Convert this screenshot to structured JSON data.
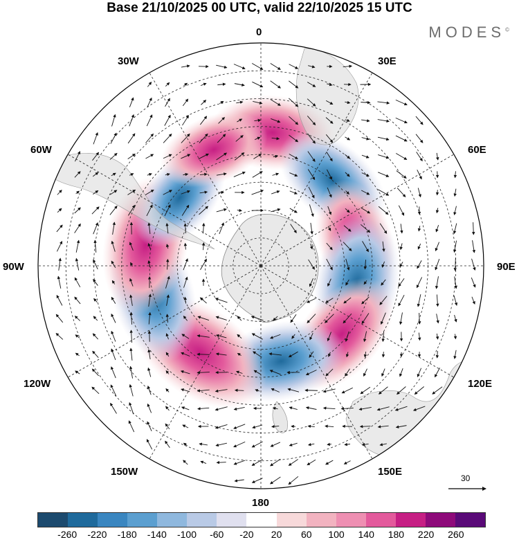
{
  "title": "Base 21/10/2025 00 UTC, valid 22/10/2025 15 UTC",
  "brand": "MODES",
  "brand_mark": "©",
  "longitude_labels": {
    "lon_0": "0",
    "lon_30e": "30E",
    "lon_60e": "60E",
    "lon_90e": "90E",
    "lon_120e": "120E",
    "lon_150e": "150E",
    "lon_180": "180",
    "lon_150w": "150W",
    "lon_120w": "120W",
    "lon_90w": "90W",
    "lon_60w": "60W",
    "lon_30w": "30W"
  },
  "reference_vector": {
    "label": "30"
  },
  "colorbar": {
    "colors": [
      "#1c4a6e",
      "#1f6a9c",
      "#3a86c0",
      "#5b9fd0",
      "#8fb8de",
      "#b9cae6",
      "#e0e0ef",
      "#ffffff",
      "#f7d9da",
      "#f2b3c0",
      "#ee8fb2",
      "#e35a9c",
      "#c61f84",
      "#8e0a7a",
      "#5a0a78"
    ],
    "ticks": [
      "-260",
      "-220",
      "-180",
      "-140",
      "-100",
      "-60",
      "-20",
      "20",
      "60",
      "100",
      "140",
      "180",
      "220",
      "260"
    ]
  },
  "anomaly_centers": [
    {
      "name": "center-pos-0",
      "lon": 5,
      "lat": -42,
      "value": 150
    },
    {
      "name": "center-neg-30e",
      "lon": 40,
      "lat": -50,
      "value": -150
    },
    {
      "name": "center-pos-60e",
      "lon": 75,
      "lat": -55,
      "value": 150
    },
    {
      "name": "center-neg-100e",
      "lon": 100,
      "lat": -55,
      "value": -200
    },
    {
      "name": "center-pos-130e",
      "lon": 130,
      "lat": -52,
      "value": 170
    },
    {
      "name": "center-neg-165e",
      "lon": 168,
      "lat": -55,
      "value": -170
    },
    {
      "name": "center-pos-150w",
      "lon": -145,
      "lat": -52,
      "value": 230
    },
    {
      "name": "center-neg-105w",
      "lon": -105,
      "lat": -50,
      "value": -190
    },
    {
      "name": "center-pos-80w",
      "lon": -80,
      "lat": -48,
      "value": 200
    },
    {
      "name": "center-neg-50w",
      "lon": -50,
      "lat": -52,
      "value": -120
    },
    {
      "name": "center-pos-20w",
      "lon": -22,
      "lat": -45,
      "value": 110
    }
  ]
}
